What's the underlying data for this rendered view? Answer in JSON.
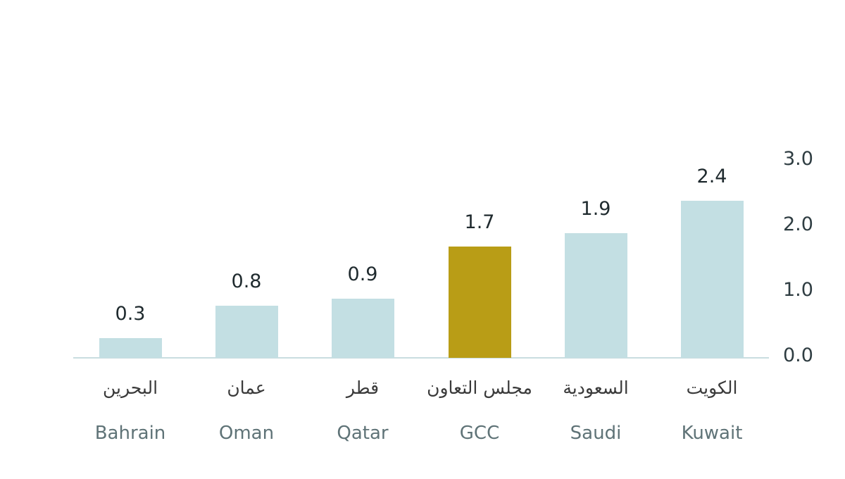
{
  "chart_data": {
    "type": "bar",
    "title": "",
    "xlabel": "",
    "ylabel": "",
    "ylim": [
      0,
      3.0
    ],
    "yticks": [
      "0.0",
      "1.0",
      "2.0",
      "3.0"
    ],
    "yaxis_position": "right",
    "grid": false,
    "categories": [
      "Bahrain",
      "Oman",
      "Qatar",
      "GCC",
      "Saudi",
      "Kuwait"
    ],
    "categories_ar": [
      "البحرين",
      "عمان",
      "قطر",
      "مجلس التعاون",
      "السعودية",
      "الكويت"
    ],
    "values": [
      0.3,
      0.8,
      0.9,
      1.7,
      1.9,
      2.4
    ],
    "value_labels": [
      "0.3",
      "0.8",
      "0.9",
      "1.7",
      "1.9",
      "2.4"
    ],
    "colors": [
      "#c3dfe3",
      "#c3dfe3",
      "#c3dfe3",
      "#b99d16",
      "#c3dfe3",
      "#c3dfe3"
    ],
    "highlight": "GCC"
  }
}
